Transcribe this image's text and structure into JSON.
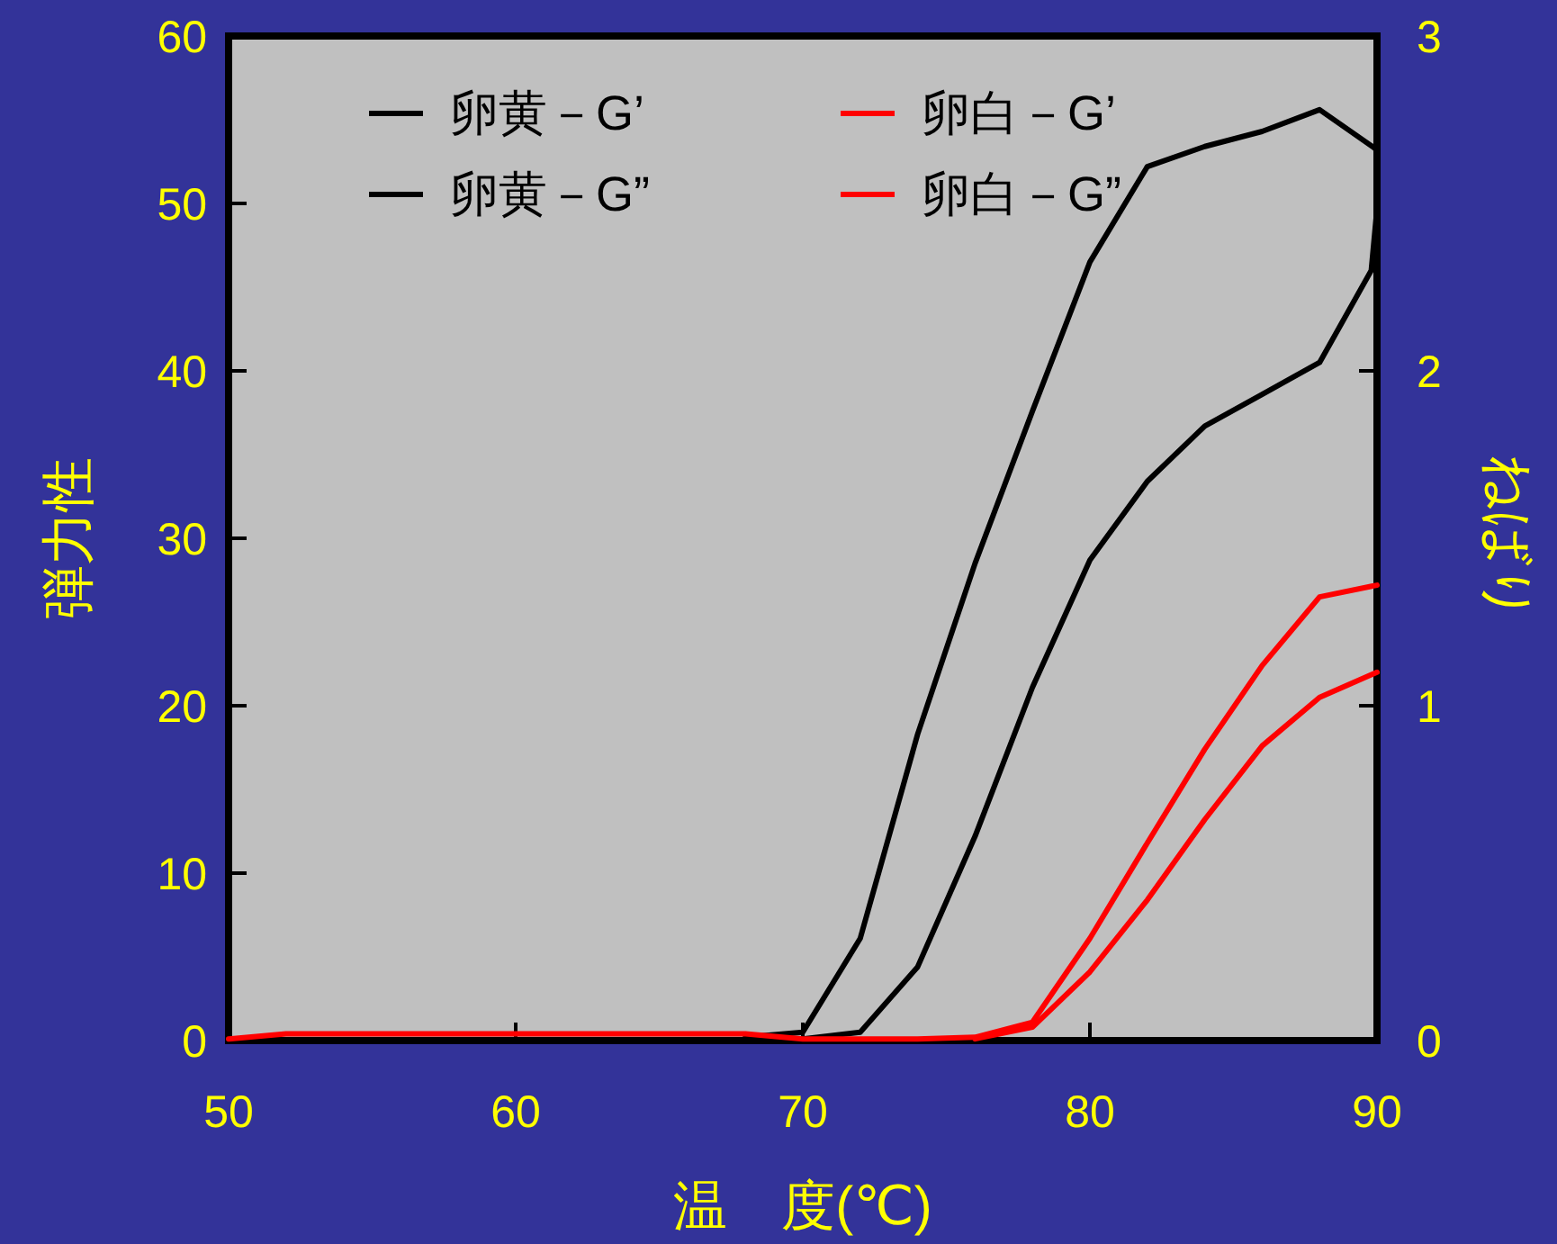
{
  "chart_data": {
    "type": "line",
    "xlabel": "温　度(℃)",
    "ylabel": "弾力性",
    "y2label": "ねばり",
    "xlim": [
      50,
      90
    ],
    "xticks": [
      50,
      60,
      70,
      80,
      90
    ],
    "ylim": [
      0,
      60
    ],
    "yticks": [
      0,
      10,
      20,
      30,
      40,
      50,
      60
    ],
    "y2lim": [
      0,
      3
    ],
    "y2ticks": [
      0,
      1,
      2,
      3
    ],
    "legend": "top",
    "grid": false,
    "marker": "none",
    "line_style": "solid",
    "series": [
      {
        "name": "卵黄－G’",
        "color": "#000000",
        "x": [
          68,
          70,
          72,
          74,
          76,
          78,
          80,
          82,
          84,
          86,
          88,
          90
        ],
        "values": [
          0.2,
          0.5,
          6.1,
          18.3,
          28.5,
          37.6,
          46.5,
          52.2,
          53.4,
          54.3,
          55.6,
          53.2
        ]
      },
      {
        "name": "卵黄－G”",
        "color": "#000000",
        "x": [
          70,
          72,
          74,
          76,
          78,
          80,
          82,
          84,
          86,
          88,
          89.8,
          90
        ],
        "values": [
          0.1,
          0.5,
          4.4,
          12.2,
          21.1,
          28.7,
          33.4,
          36.7,
          38.6,
          40.5,
          46,
          49.7
        ]
      },
      {
        "name": "卵白－G’",
        "color": "#ff0000",
        "x": [
          50,
          52,
          54,
          56,
          58,
          60,
          62,
          64,
          66,
          68,
          70,
          72,
          74,
          76,
          78,
          80,
          82,
          84,
          86,
          88,
          90
        ],
        "values": [
          0.1,
          0.4,
          0.4,
          0.4,
          0.4,
          0.4,
          0.4,
          0.4,
          0.4,
          0.4,
          0.1,
          0.1,
          0.1,
          0.2,
          1.1,
          6.1,
          11.8,
          17.4,
          22.4,
          26.5,
          27.2
        ]
      },
      {
        "name": "卵白－G”",
        "color": "#ff0000",
        "x": [
          76,
          78,
          80,
          82,
          84,
          86,
          88,
          90
        ],
        "values": [
          0.1,
          0.8,
          4.1,
          8.4,
          13.2,
          17.6,
          20.5,
          22.0
        ]
      }
    ]
  }
}
